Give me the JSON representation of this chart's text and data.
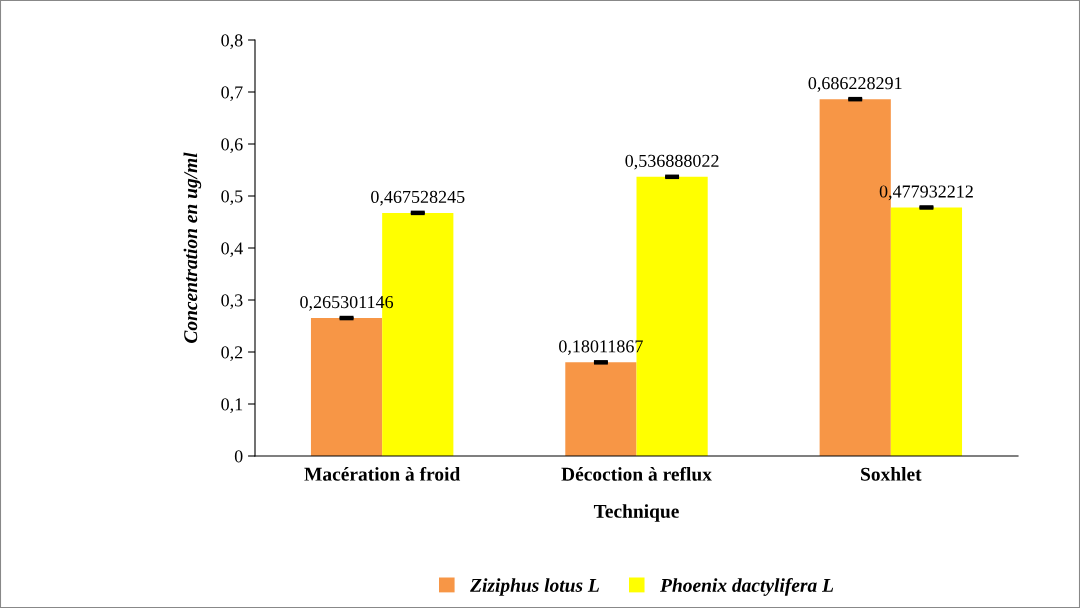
{
  "chart_data": {
    "type": "bar",
    "categories": [
      "Macération à froid",
      "Décoction à reflux",
      "Soxhlet"
    ],
    "series": [
      {
        "name": "Ziziphus lotus L",
        "color": "#f79646",
        "values": [
          0.265301146,
          0.18011867,
          0.686228291
        ],
        "value_labels": [
          "0,265301146",
          "0,18011867",
          "0,686228291"
        ],
        "errors": [
          0.001,
          0.001,
          0.001
        ]
      },
      {
        "name": "Phoenix dactylifera L",
        "color": "#ffff00",
        "values": [
          0.467528245,
          0.536888022,
          0.477932212
        ],
        "value_labels": [
          "0,467528245",
          "0,536888022",
          "0,477932212"
        ],
        "errors": [
          0.001,
          0.001,
          0.001
        ]
      }
    ],
    "xlabel": "Technique",
    "ylabel": "Concentration en ug/ml",
    "ylim": [
      0,
      0.8
    ],
    "yticks": [
      0,
      {
        "value": 0.1,
        "label": "0,1"
      },
      {
        "value": 0.2,
        "label": "0,2"
      },
      {
        "value": 0.3,
        "label": "0,3"
      },
      {
        "value": 0.4,
        "label": "0,4"
      },
      {
        "value": 0.5,
        "label": "0,5"
      },
      {
        "value": 0.6,
        "label": "0,6"
      },
      {
        "value": 0.7,
        "label": "0,7"
      },
      {
        "value": 0.8,
        "label": "0,8"
      }
    ],
    "grid": false,
    "legend": "bottom"
  }
}
